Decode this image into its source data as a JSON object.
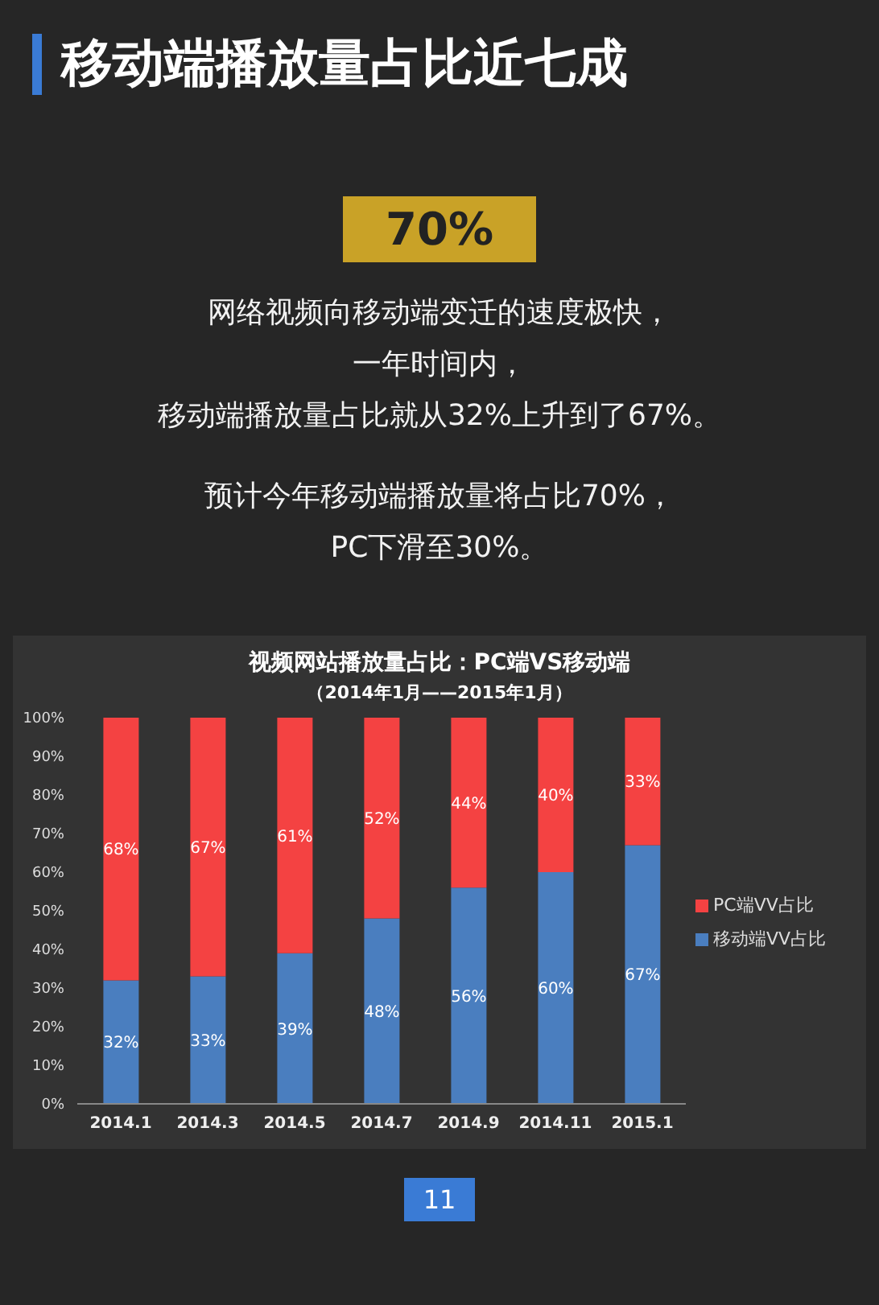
{
  "chart_data": {
    "type": "bar",
    "title": "移动端播放量占比近七成",
    "subtitle": "视频网站播放量占比：PC端VS移动端",
    "annotations": [
      "70%",
      "网络视频向移动端变迁的速度极快，",
      "一年时间内，",
      "移动端播放量占比就从32%上升到了67%。",
      "预计今年移动端播放量将占比70%，",
      "PC下滑至30%。",
      "（2014年1月——2015年1月）",
      "11"
    ],
    "categories": [
      "2014.1",
      "2014.3",
      "2014.5",
      "2014.7",
      "2014.9",
      "2014.11",
      "2015.1"
    ],
    "stacked": true,
    "series": [
      {
        "name": "移动端VV占比",
        "color": "#4a7ebf",
        "values": [
          32,
          33,
          39,
          48,
          56,
          60,
          67
        ],
        "value_labels": [
          "32%",
          "33%",
          "39%",
          "48%",
          "56%",
          "60%",
          "67%"
        ]
      },
      {
        "name": "PC端VV占比",
        "color": "#f44242",
        "values": [
          68,
          67,
          61,
          52,
          44,
          40,
          33
        ],
        "value_labels": [
          "68%",
          "67%",
          "61%",
          "52%",
          "44%",
          "40%",
          "33%"
        ]
      }
    ],
    "ylim": [
      0,
      100
    ],
    "yticks": [
      {
        "value": 0,
        "label": "0%"
      },
      {
        "value": 10,
        "label": "10%"
      },
      {
        "value": 20,
        "label": "20%"
      },
      {
        "value": 30,
        "label": "30%"
      },
      {
        "value": 40,
        "label": "40%"
      },
      {
        "value": 50,
        "label": "50%"
      },
      {
        "value": 60,
        "label": "60%"
      },
      {
        "value": 70,
        "label": "70%"
      },
      {
        "value": 80,
        "label": "80%"
      },
      {
        "value": 90,
        "label": "90%"
      },
      {
        "value": 100,
        "label": "100%"
      }
    ],
    "legend": "right"
  }
}
